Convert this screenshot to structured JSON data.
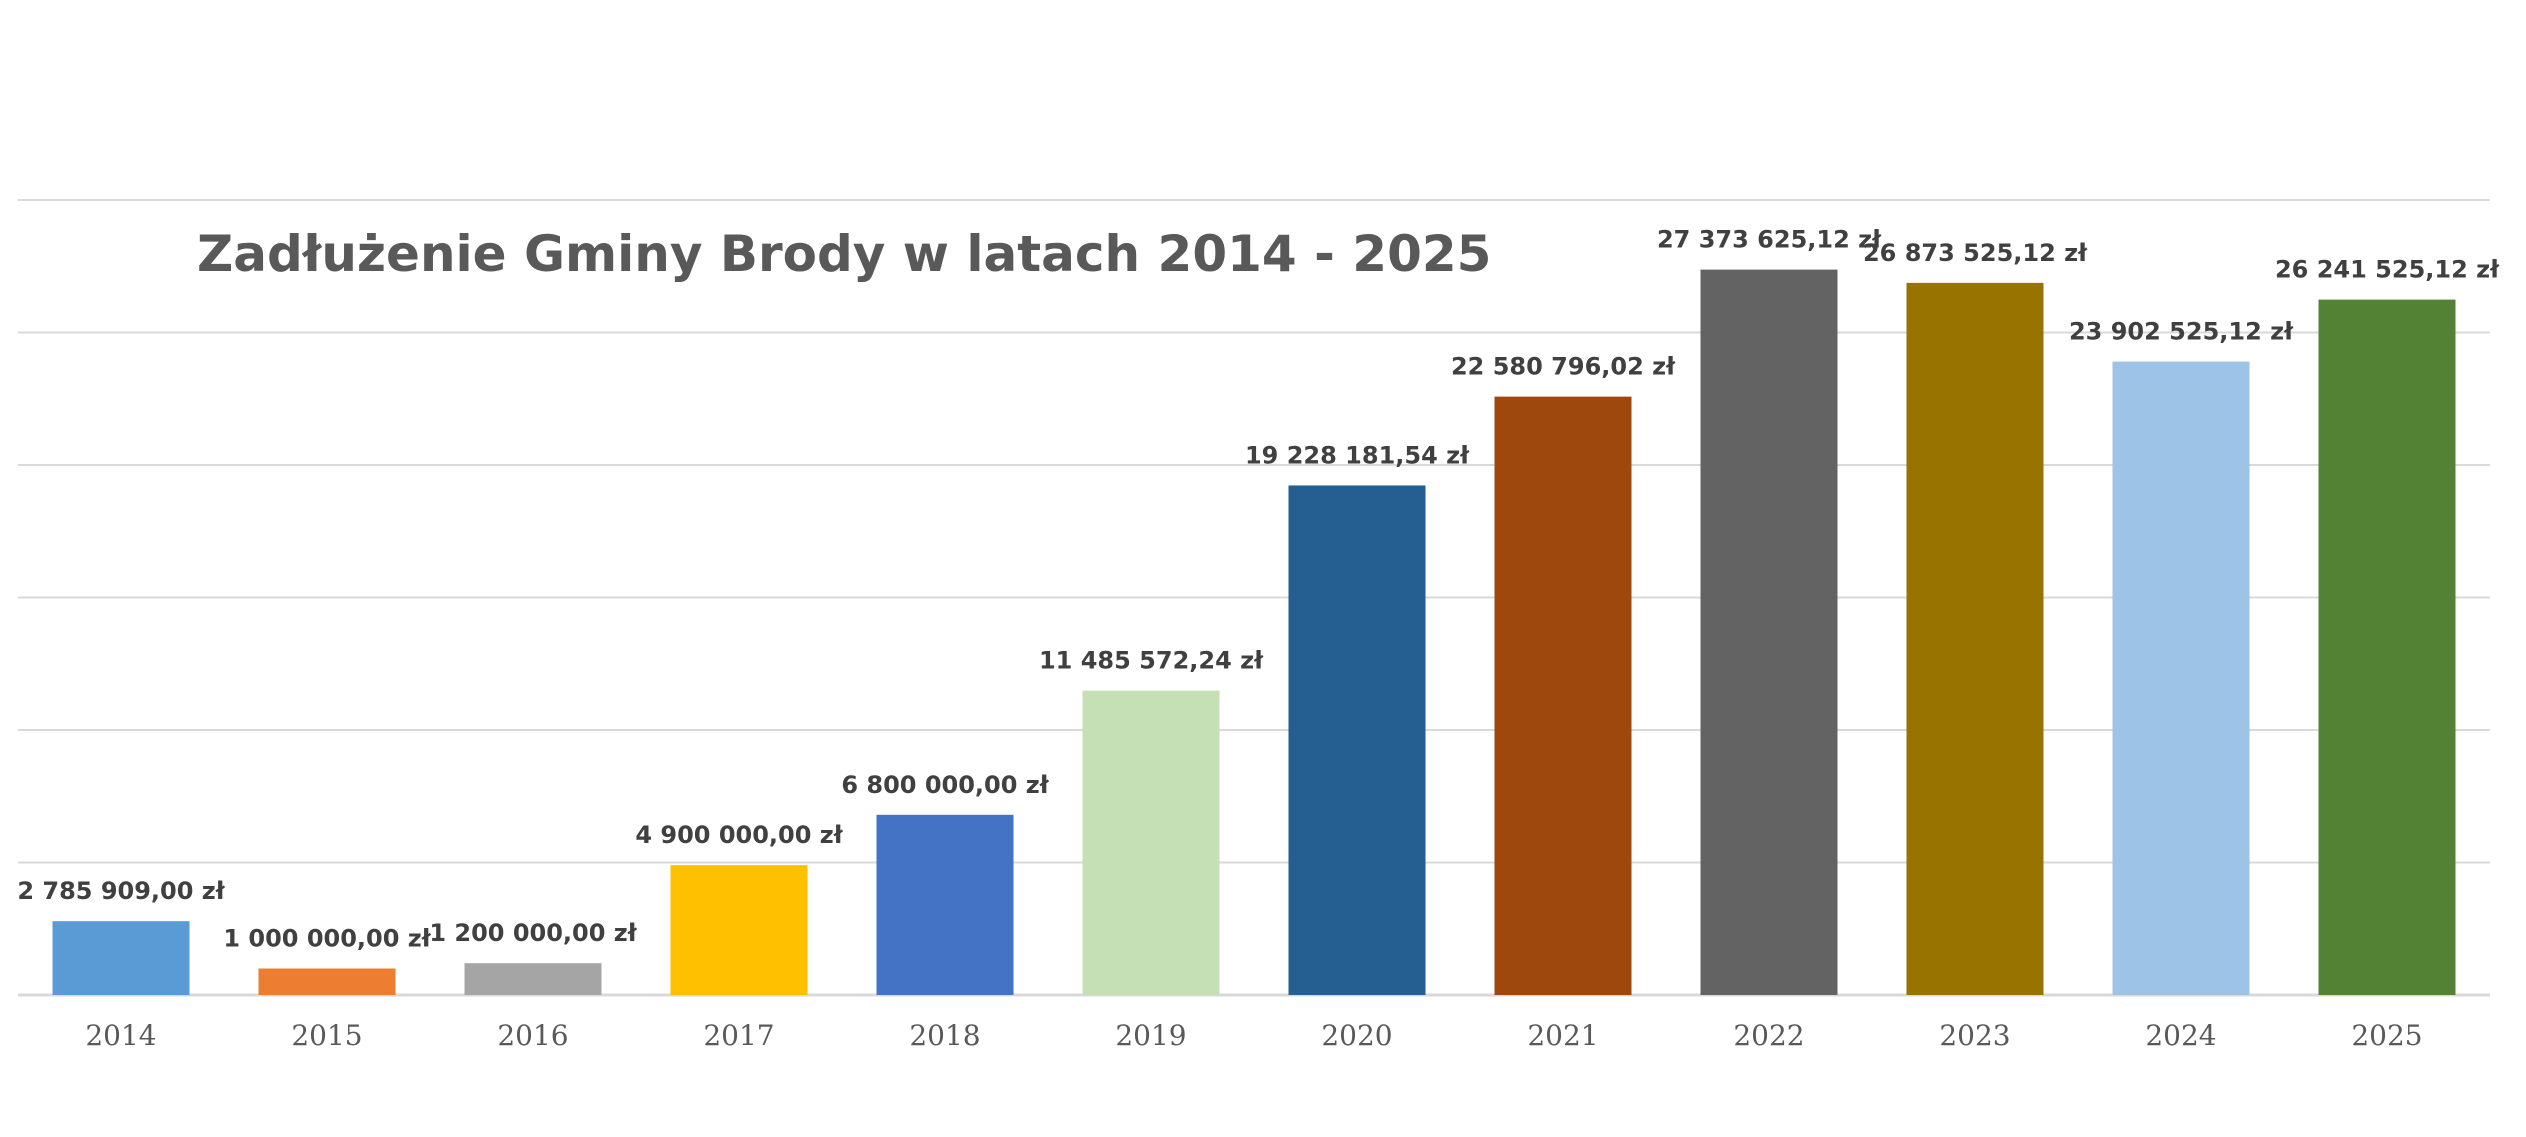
{
  "chart_data": {
    "type": "bar",
    "title": "Zadłużenie Gminy Brody w latach 2014 - 2025",
    "xlabel": "",
    "ylabel": "",
    "categories": [
      "2014",
      "2015",
      "2016",
      "2017",
      "2018",
      "2019",
      "2020",
      "2021",
      "2022",
      "2023",
      "2024",
      "2025"
    ],
    "values": [
      2785909.0,
      1000000.0,
      1200000.0,
      4900000.0,
      6800000.0,
      11485572.24,
      19228181.54,
      22580796.02,
      27373625.12,
      26873525.12,
      23902525.12,
      26241525.12
    ],
    "value_labels": [
      "2 785 909,00 zł",
      "1 000 000,00 zł",
      "1 200 000,00 zł",
      "4 900 000,00 zł",
      "6 800 000,00 zł",
      "11 485 572,24 zł",
      "19 228 181,54 zł",
      "22 580 796,02 zł",
      "27 373 625,12 zł",
      "26 873 525,12 zł",
      "23 902 525,12 zł",
      "26 241 525,12 zł"
    ],
    "colors": [
      "#5B9BD5",
      "#ED7D31",
      "#A5A5A5",
      "#FFC000",
      "#4472C4",
      "#C5E0B4",
      "#255E91",
      "#9E480E",
      "#636363",
      "#997300",
      "#9DC3E6",
      "#548235"
    ],
    "ylim": [
      0,
      30000000
    ],
    "grid": true,
    "legend": "none"
  }
}
